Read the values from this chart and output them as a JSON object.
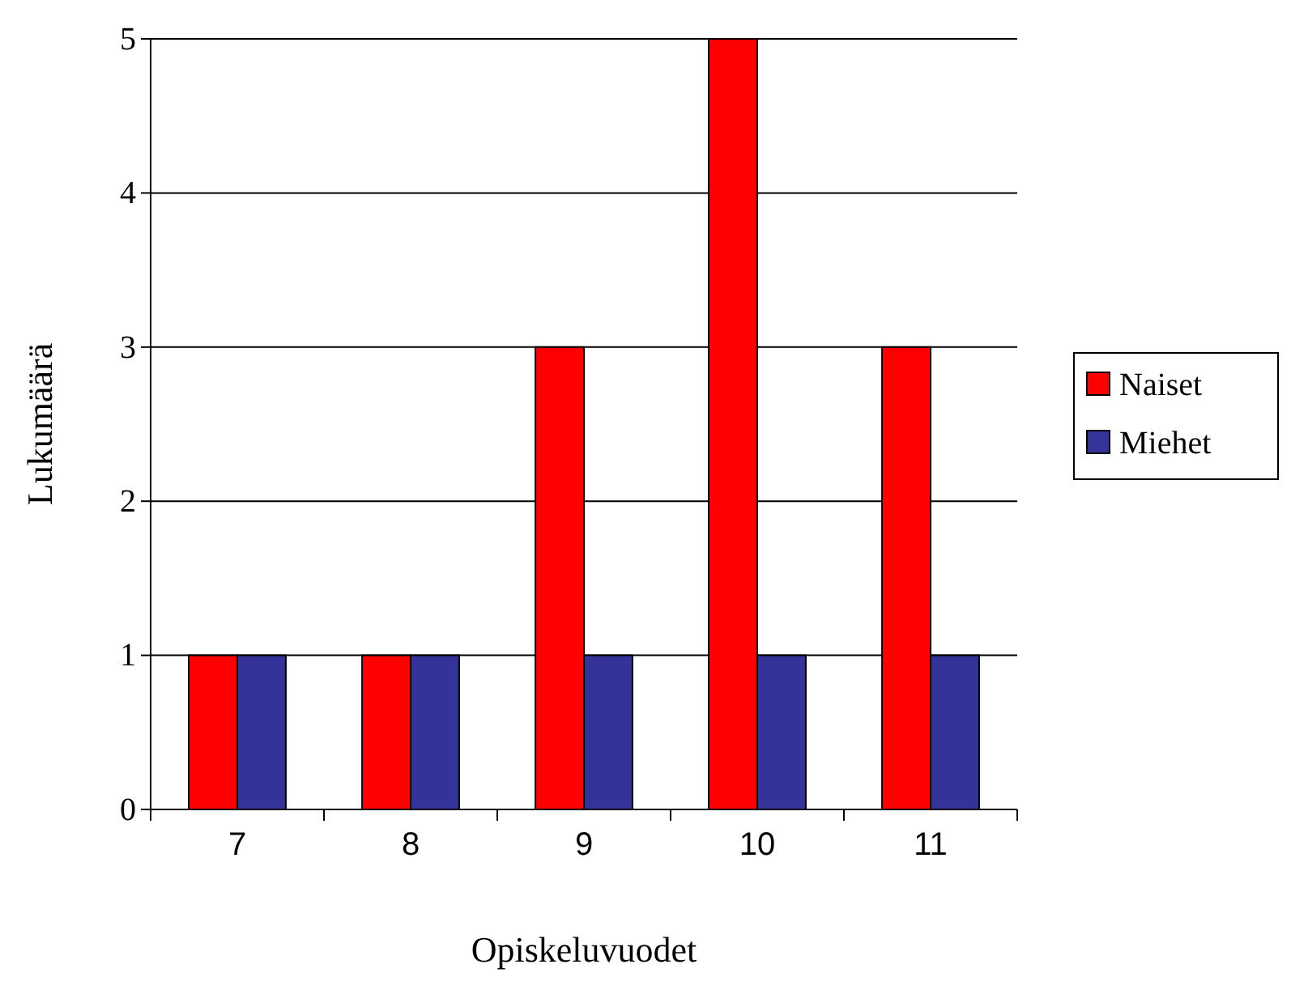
{
  "chart_data": {
    "type": "bar",
    "xlabel": "Opiskeluvuodet",
    "ylabel": "Lukumäärä",
    "categories": [
      "7",
      "8",
      "9",
      "10",
      "11"
    ],
    "series": [
      {
        "name": "Naiset",
        "color": "#ff0000",
        "values": [
          1,
          1,
          3,
          5,
          3
        ]
      },
      {
        "name": "Miehet",
        "color": "#333399",
        "values": [
          1,
          1,
          1,
          1,
          1
        ]
      }
    ],
    "ylim": [
      0,
      5
    ],
    "yticks": [
      0,
      1,
      2,
      3,
      4,
      5
    ],
    "grid": "y",
    "legend": "right"
  }
}
